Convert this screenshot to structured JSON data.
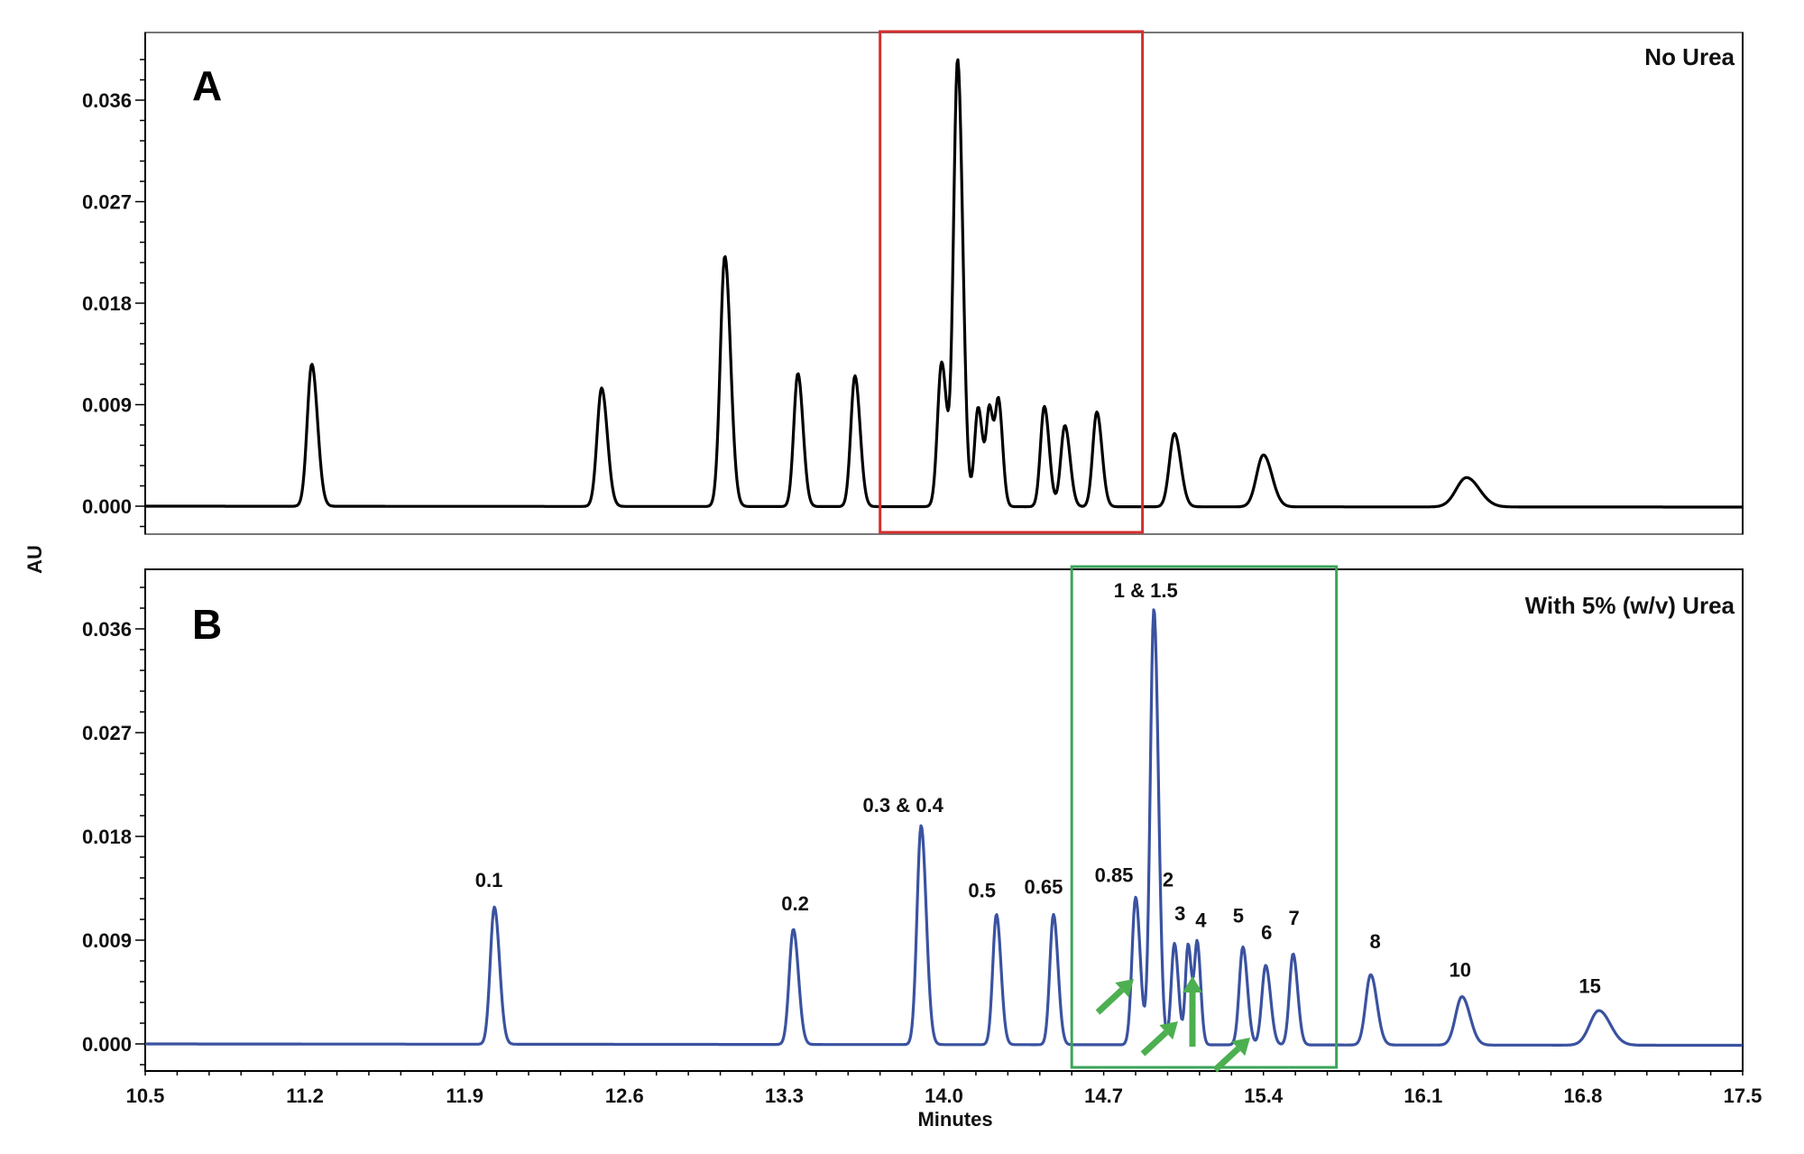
{
  "figure": {
    "y_axis_title": "AU",
    "x_axis_title": "Minutes",
    "colors": {
      "trace_a": "#000000",
      "trace_b": "#3a52a0",
      "highlight_a": "#d32f2f",
      "highlight_b": "#3aa55a",
      "arrow": "#4caf50",
      "frame": "#000000"
    }
  },
  "chart_data": [
    {
      "type": "line",
      "panel": "A",
      "title": "No Urea",
      "xlabel": "Minutes",
      "ylabel": "AU",
      "xlim": [
        10.5,
        17.5
      ],
      "ylim": [
        -0.0015,
        0.0415
      ],
      "x_ticks": [
        "10.5",
        "11.2",
        "11.9",
        "12.6",
        "13.3",
        "14.0",
        "14.7",
        "15.4",
        "16.1",
        "16.8",
        "17.5"
      ],
      "y_ticks": [
        "0.000",
        "0.009",
        "0.018",
        "0.027",
        "0.036"
      ],
      "grid": false,
      "highlight_box": {
        "x_start": 13.72,
        "x_end": 14.87,
        "color": "red"
      },
      "peaks": [
        {
          "time": 11.23,
          "height": 0.0126,
          "sigma": 0.02
        },
        {
          "time": 12.5,
          "height": 0.0105,
          "sigma": 0.02
        },
        {
          "time": 13.04,
          "height": 0.0222,
          "sigma": 0.02
        },
        {
          "time": 13.36,
          "height": 0.0118,
          "sigma": 0.018
        },
        {
          "time": 13.61,
          "height": 0.0116,
          "sigma": 0.018
        },
        {
          "time": 13.99,
          "height": 0.0128,
          "sigma": 0.018
        },
        {
          "time": 14.06,
          "height": 0.0396,
          "sigma": 0.018
        },
        {
          "time": 14.15,
          "height": 0.0088,
          "sigma": 0.016
        },
        {
          "time": 14.2,
          "height": 0.0085,
          "sigma": 0.014
        },
        {
          "time": 14.24,
          "height": 0.009,
          "sigma": 0.014
        },
        {
          "time": 14.44,
          "height": 0.0089,
          "sigma": 0.017
        },
        {
          "time": 14.53,
          "height": 0.0072,
          "sigma": 0.018
        },
        {
          "time": 14.67,
          "height": 0.0084,
          "sigma": 0.018
        },
        {
          "time": 15.01,
          "height": 0.0065,
          "sigma": 0.022
        },
        {
          "time": 15.4,
          "height": 0.0046,
          "sigma": 0.03
        },
        {
          "time": 16.29,
          "height": 0.0026,
          "sigma": 0.045
        }
      ]
    },
    {
      "type": "line",
      "panel": "B",
      "title": "With 5% (w/v) Urea",
      "xlabel": "Minutes",
      "ylabel": "AU",
      "xlim": [
        10.5,
        17.5
      ],
      "ylim": [
        -0.0023,
        0.0408
      ],
      "x_ticks": [
        "10.5",
        "11.2",
        "11.9",
        "12.6",
        "13.3",
        "14.0",
        "14.7",
        "15.4",
        "16.1",
        "16.8",
        "17.5"
      ],
      "y_ticks": [
        "0.000",
        "0.009",
        "0.018",
        "0.027",
        "0.036"
      ],
      "grid": false,
      "highlight_box": {
        "x_start": 14.56,
        "x_end": 15.72,
        "color": "green"
      },
      "peaks": [
        {
          "label": "0.1",
          "time": 12.03,
          "height": 0.0119,
          "sigma": 0.018
        },
        {
          "label": "0.2",
          "time": 13.34,
          "height": 0.01,
          "sigma": 0.018
        },
        {
          "label": "0.3 & 0.4",
          "time": 13.9,
          "height": 0.019,
          "sigma": 0.018
        },
        {
          "label": "0.5",
          "time": 14.23,
          "height": 0.0113,
          "sigma": 0.016
        },
        {
          "label": "0.65",
          "time": 14.48,
          "height": 0.0113,
          "sigma": 0.016
        },
        {
          "label": "0.85",
          "time": 14.84,
          "height": 0.0128,
          "sigma": 0.016
        },
        {
          "label": "1 & 1.5",
          "time": 14.92,
          "height": 0.0378,
          "sigma": 0.016
        },
        {
          "label": "2",
          "time": 15.01,
          "height": 0.0088,
          "sigma": 0.014
        },
        {
          "label": "3",
          "time": 15.07,
          "height": 0.0087,
          "sigma": 0.012
        },
        {
          "label": "4",
          "time": 15.11,
          "height": 0.0088,
          "sigma": 0.012
        },
        {
          "label": "5",
          "time": 15.31,
          "height": 0.0085,
          "sigma": 0.016
        },
        {
          "label": "6",
          "time": 15.41,
          "height": 0.0069,
          "sigma": 0.017
        },
        {
          "label": "7",
          "time": 15.53,
          "height": 0.0079,
          "sigma": 0.016
        },
        {
          "label": "8",
          "time": 15.87,
          "height": 0.0061,
          "sigma": 0.022
        },
        {
          "label": "10",
          "time": 16.27,
          "height": 0.0042,
          "sigma": 0.028
        },
        {
          "label": "15",
          "time": 16.87,
          "height": 0.003,
          "sigma": 0.04
        }
      ],
      "annotations": [
        {
          "type": "arrow",
          "points_to": "0.85 / 1 & 1.5 shoulder"
        },
        {
          "type": "arrow",
          "points_to": "valley 2 / 3"
        },
        {
          "type": "arrow",
          "points_to": "valley 3 / 4"
        },
        {
          "type": "arrow",
          "points_to": "valley 5 / 6"
        }
      ]
    }
  ],
  "panels": {
    "a": {
      "letter": "A",
      "title": "No Urea"
    },
    "b": {
      "letter": "B",
      "title": "With 5% (w/v) Urea"
    }
  }
}
